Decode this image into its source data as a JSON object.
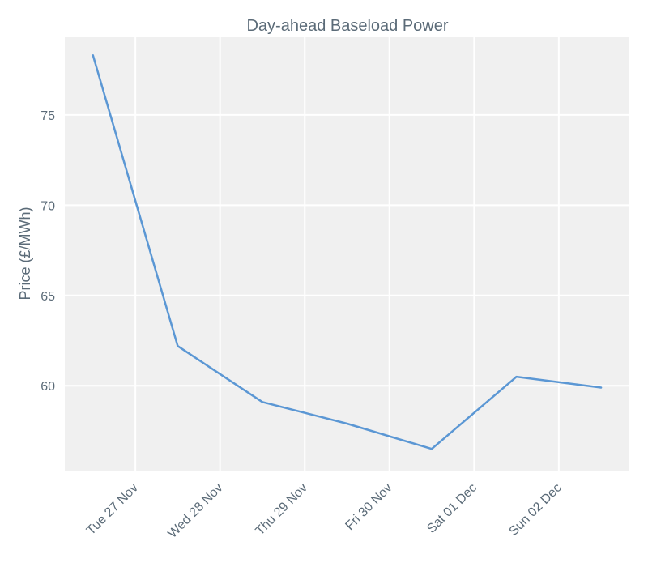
{
  "chart_data": {
    "type": "line",
    "title": "Day-ahead Baseload Power",
    "xlabel": "",
    "ylabel": "Price (£/MWh)",
    "x_ticks": [
      {
        "x": "2018-11-27T00:00",
        "label": "Tue 27 Nov"
      },
      {
        "x": "2018-11-28T00:00",
        "label": "Wed 28 Nov"
      },
      {
        "x": "2018-11-29T00:00",
        "label": "Thu 29 Nov"
      },
      {
        "x": "2018-11-30T00:00",
        "label": "Fri 30 Nov"
      },
      {
        "x": "2018-12-01T00:00",
        "label": "Sat 01 Dec"
      },
      {
        "x": "2018-12-02T00:00",
        "label": "Sun 02 Dec"
      }
    ],
    "y_ticks": [
      60,
      65,
      70,
      75
    ],
    "xlim": [
      "2018-11-26T04:00",
      "2018-12-02T20:00"
    ],
    "ylim": [
      55.3,
      79.3
    ],
    "grid": true,
    "series": [
      {
        "color": "#5b97d4",
        "points": [
          {
            "x": "2018-11-26T12:00",
            "y": 78.3
          },
          {
            "x": "2018-11-27T12:00",
            "y": 62.2
          },
          {
            "x": "2018-11-28T12:00",
            "y": 59.1
          },
          {
            "x": "2018-11-29T12:00",
            "y": 57.9
          },
          {
            "x": "2018-11-30T12:00",
            "y": 56.5
          },
          {
            "x": "2018-12-01T12:00",
            "y": 60.5
          },
          {
            "x": "2018-12-02T12:00",
            "y": 59.9
          }
        ]
      }
    ]
  }
}
